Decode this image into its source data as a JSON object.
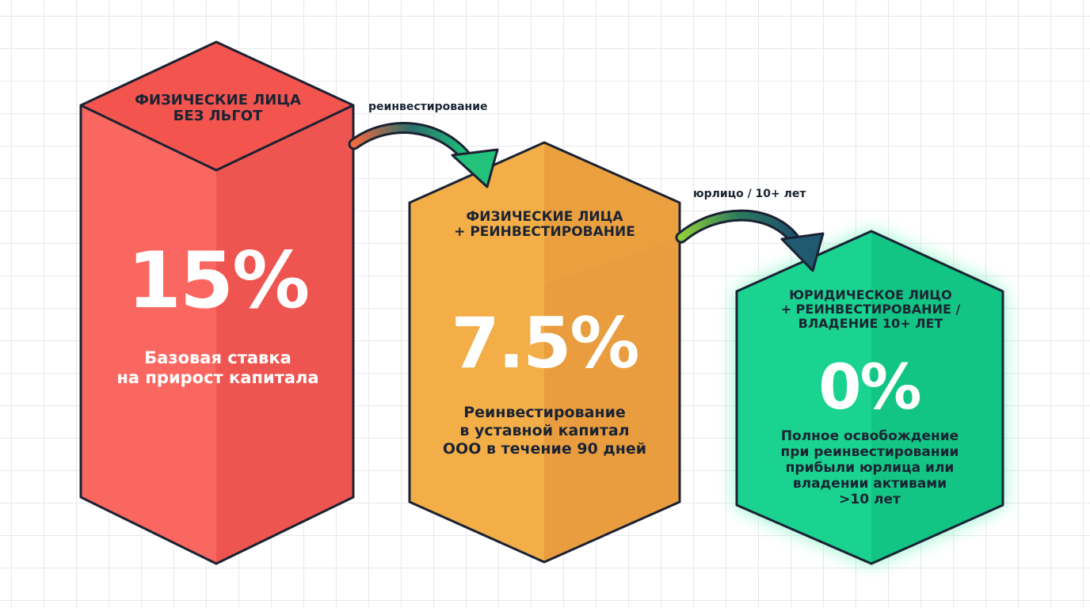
{
  "colors": {
    "red": "#f4544e",
    "orange": "#f0a33c",
    "green": "#17cf8a",
    "outline": "#1b2233"
  },
  "blocks": [
    {
      "header_line1": "ФИЗИЧЕСКИЕ ЛИЦА",
      "header_line2": "БЕЗ ЛЬГОТ",
      "rate": "15%",
      "desc_line1": "Базовая ставка",
      "desc_line2": "на прирост капитала"
    },
    {
      "header_line1": "ФИЗИЧЕСКИЕ ЛИЦА",
      "header_line2": "+ РЕИНВЕСТИРОВАНИЕ",
      "rate": "7.5%",
      "desc_line1": "Реинвестирование",
      "desc_line2": "в уставной капитал",
      "desc_line3": "ООО в течение 90 дней"
    },
    {
      "header_line1": "ЮРИДИЧЕСКОЕ ЛИЦО",
      "header_line2": "+ РЕИНВЕСТИРОВАНИЕ /",
      "header_line3": "ВЛАДЕНИЕ 10+ ЛЕТ",
      "rate": "0%",
      "desc_line1": "Полное освобождение",
      "desc_line2": "при реинвестировании",
      "desc_line3": "прибыли юрлица или",
      "desc_line4": "владении активами",
      "desc_line5": ">10 лет"
    }
  ],
  "arrows": [
    {
      "label": "реинвестирование"
    },
    {
      "label": "юрлицо / 10+ лет"
    }
  ]
}
